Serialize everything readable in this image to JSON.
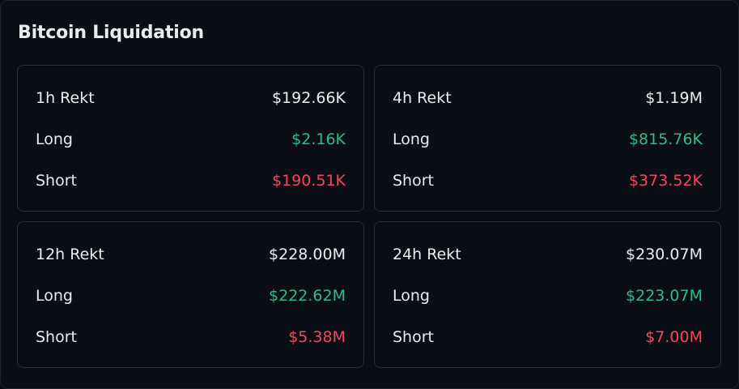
{
  "title": "Bitcoin Liquidation",
  "colors": {
    "long": "#2ebd85",
    "short": "#f6465d",
    "text": "#eaecef",
    "background": "#0b0e14"
  },
  "cards": [
    {
      "period_label": "1h Rekt",
      "total": "$192.66K",
      "long_label": "Long",
      "long": "$2.16K",
      "short_label": "Short",
      "short": "$190.51K"
    },
    {
      "period_label": "4h Rekt",
      "total": "$1.19M",
      "long_label": "Long",
      "long": "$815.76K",
      "short_label": "Short",
      "short": "$373.52K"
    },
    {
      "period_label": "12h Rekt",
      "total": "$228.00M",
      "long_label": "Long",
      "long": "$222.62M",
      "short_label": "Short",
      "short": "$5.38M"
    },
    {
      "period_label": "24h Rekt",
      "total": "$230.07M",
      "long_label": "Long",
      "long": "$223.07M",
      "short_label": "Short",
      "short": "$7.00M"
    }
  ]
}
